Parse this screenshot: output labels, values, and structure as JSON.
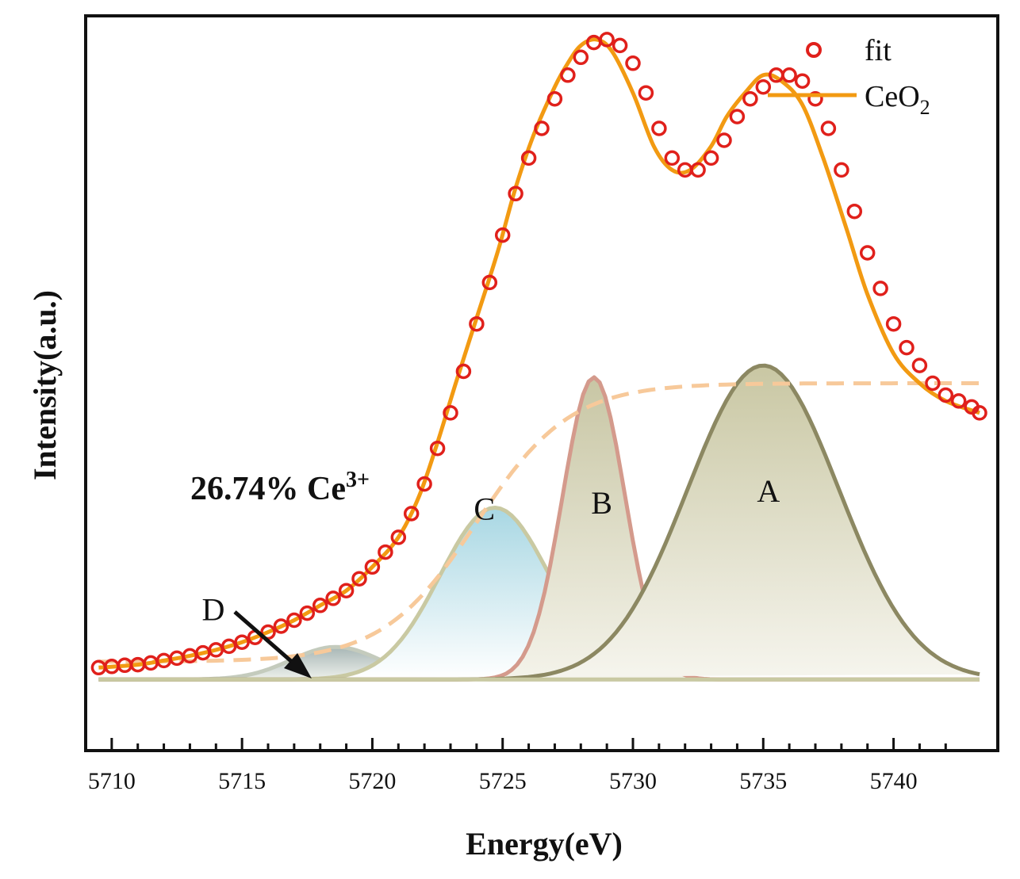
{
  "chart_data": {
    "type": "line",
    "xlabel": "Energy(eV)",
    "ylabel": "Intensity(a.u.)",
    "xlim": [
      5709,
      5744
    ],
    "ylim": [
      -0.12,
      1.12
    ],
    "x_ticks": [
      5710,
      5715,
      5720,
      5725,
      5730,
      5735,
      5740
    ],
    "tick_labels": [
      "5710",
      "5715",
      "5720",
      "5725",
      "5730",
      "5735",
      "5740"
    ],
    "legend": {
      "position": "top-right",
      "entries": [
        {
          "name": "fit",
          "marker": "open-circle",
          "color": "#e0201b"
        },
        {
          "name": "CeO",
          "subscript": "2",
          "marker": "line",
          "color": "#f29a12"
        }
      ]
    },
    "annotation": {
      "text": "26.74% Ce",
      "superscript": "3+"
    },
    "background": {
      "name": "background",
      "type": "step-sigmoid",
      "start_x": 5709.5,
      "end_x": 5743.3,
      "start_y": 0.03,
      "end_y": 0.5,
      "center": 5724,
      "width": 1.8,
      "color": "#f7c99a"
    },
    "components": [
      {
        "label": "A",
        "center": 5735.0,
        "sigma": 2.9,
        "amplitude": 0.53,
        "stroke": "#8c8862",
        "fill_top": "#c9c7a3",
        "fill_bottom": "#f6f5ee"
      },
      {
        "label": "B",
        "center": 5728.5,
        "sigma": 1.2,
        "amplitude": 0.51,
        "stroke": "#d49a8c",
        "fill_top": "#c8c6a4",
        "fill_bottom": "#f4f3ea"
      },
      {
        "label": "C",
        "center": 5724.7,
        "sigma": 2.1,
        "amplitude": 0.29,
        "stroke": "#c9c9a2",
        "fill_top": "#a8d7e3",
        "fill_bottom": "#ffffff"
      },
      {
        "label": "D",
        "center": 5718.6,
        "sigma": 1.7,
        "amplitude": 0.055,
        "stroke": "#c4cbbd",
        "fill_top": "#a7b6b5",
        "fill_bottom": "#eef1ec"
      }
    ],
    "series": [
      {
        "name": "CeO2",
        "type": "line",
        "color": "#f29a12",
        "x": [
          5709.5,
          5711,
          5712,
          5713,
          5714,
          5715,
          5716,
          5717,
          5718,
          5719,
          5720,
          5721,
          5721.8,
          5722.5,
          5723.2,
          5724,
          5724.8,
          5725.5,
          5726.2,
          5727,
          5727.5,
          5728,
          5728.6,
          5729.2,
          5730,
          5730.8,
          5731.5,
          5732.2,
          5733,
          5733.6,
          5734.3,
          5735,
          5735.7,
          5736.5,
          5737.3,
          5738.2,
          5739,
          5740,
          5741,
          5742,
          5743.3
        ],
        "y": [
          0.02,
          0.025,
          0.032,
          0.04,
          0.05,
          0.063,
          0.08,
          0.1,
          0.125,
          0.15,
          0.19,
          0.24,
          0.31,
          0.4,
          0.5,
          0.61,
          0.72,
          0.83,
          0.92,
          1.0,
          1.04,
          1.07,
          1.08,
          1.06,
          0.99,
          0.9,
          0.86,
          0.86,
          0.9,
          0.95,
          0.99,
          1.02,
          1.01,
          0.97,
          0.88,
          0.76,
          0.65,
          0.55,
          0.5,
          0.47,
          0.45
        ]
      },
      {
        "name": "fit",
        "type": "scatter",
        "color": "#e0201b",
        "x": [
          5709.5,
          5710,
          5710.5,
          5711,
          5711.5,
          5712,
          5712.5,
          5713,
          5713.5,
          5714,
          5714.5,
          5715,
          5715.5,
          5716,
          5716.5,
          5717,
          5717.5,
          5718,
          5718.5,
          5719,
          5719.5,
          5720,
          5720.5,
          5721,
          5721.5,
          5722,
          5722.5,
          5723,
          5723.5,
          5724,
          5724.5,
          5725,
          5725.5,
          5726,
          5726.5,
          5727,
          5727.5,
          5728,
          5728.5,
          5729,
          5729.5,
          5730,
          5730.5,
          5731,
          5731.5,
          5732,
          5732.5,
          5733,
          5733.5,
          5734,
          5734.5,
          5735,
          5735.5,
          5736,
          5736.5,
          5737,
          5737.5,
          5738,
          5738.5,
          5739,
          5739.5,
          5740,
          5740.5,
          5741,
          5741.5,
          5742,
          5742.5,
          5743,
          5743.3
        ],
        "y": [
          0.02,
          0.022,
          0.024,
          0.025,
          0.028,
          0.032,
          0.036,
          0.04,
          0.045,
          0.05,
          0.056,
          0.063,
          0.071,
          0.08,
          0.09,
          0.1,
          0.112,
          0.125,
          0.137,
          0.15,
          0.17,
          0.19,
          0.215,
          0.24,
          0.28,
          0.33,
          0.39,
          0.45,
          0.52,
          0.6,
          0.67,
          0.75,
          0.82,
          0.88,
          0.93,
          0.98,
          1.02,
          1.05,
          1.075,
          1.08,
          1.07,
          1.04,
          0.99,
          0.93,
          0.88,
          0.86,
          0.86,
          0.88,
          0.91,
          0.95,
          0.98,
          1.0,
          1.02,
          1.02,
          1.01,
          0.98,
          0.93,
          0.86,
          0.79,
          0.72,
          0.66,
          0.6,
          0.56,
          0.53,
          0.5,
          0.48,
          0.47,
          0.46,
          0.45
        ]
      }
    ]
  }
}
